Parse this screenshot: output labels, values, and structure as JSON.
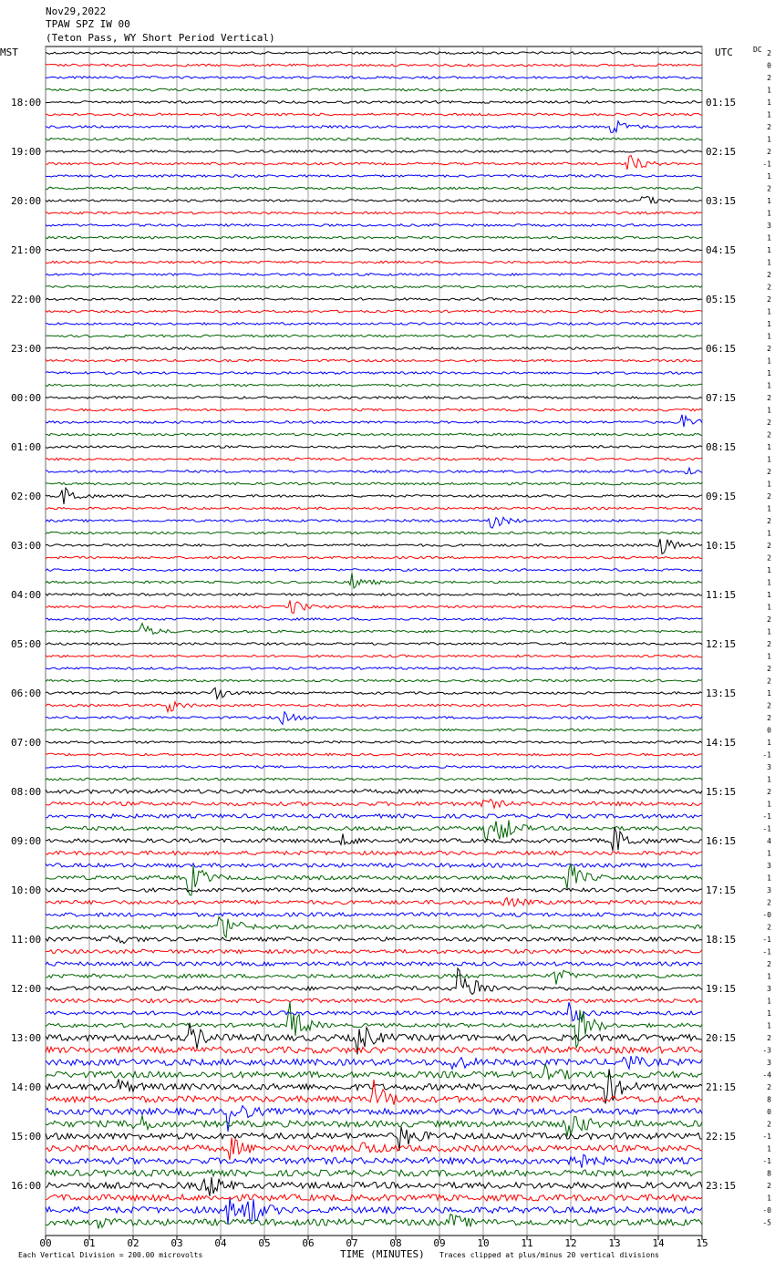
{
  "chart_data": {
    "type": "seismogram",
    "title": "Nov29,2022",
    "subtitle": "TPAW SPZ IW 00",
    "station": "(Teton Pass, WY Short Period Vertical)",
    "left_axis_label": "MST",
    "right_axis_label": "UTC",
    "dc_label": "DC",
    "x_label": "TIME (MINUTES)",
    "scale_note": "Each Vertical Division =  200.00 microvolts",
    "clip_note": "Traces clipped at plus/minus 20 vertical divisions",
    "trace_colors": [
      "#000000",
      "#ff0000",
      "#0000ff",
      "#006400"
    ],
    "xlim": [
      0,
      15
    ],
    "xticks": [
      {
        "value": 0,
        "label": "00"
      },
      {
        "value": 1,
        "label": "01"
      },
      {
        "value": 2,
        "label": "02"
      },
      {
        "value": 3,
        "label": "03"
      },
      {
        "value": 4,
        "label": "04"
      },
      {
        "value": 5,
        "label": "05"
      },
      {
        "value": 6,
        "label": "06"
      },
      {
        "value": 7,
        "label": "07"
      },
      {
        "value": 8,
        "label": "08"
      },
      {
        "value": 9,
        "label": "09"
      },
      10,
      11,
      12,
      13,
      14,
      15
    ],
    "left_labels": [
      "18:00",
      "19:00",
      "20:00",
      "21:00",
      "22:00",
      "23:00",
      "00:00",
      "01:00",
      "02:00",
      "03:00",
      "04:00",
      "05:00",
      "06:00",
      "07:00",
      "08:00",
      "09:00",
      "10:00",
      "11:00",
      "12:00",
      "13:00",
      "14:00",
      "15:00",
      "16:00"
    ],
    "right_labels": [
      "01:15",
      "02:15",
      "03:15",
      "04:15",
      "05:15",
      "06:15",
      "07:15",
      "08:15",
      "09:15",
      "10:15",
      "11:15",
      "12:15",
      "13:15",
      "14:15",
      "15:15",
      "16:15",
      "17:15",
      "18:15",
      "19:15",
      "20:15",
      "21:15",
      "22:15",
      "23:15"
    ],
    "dc_offsets": [
      2,
      0,
      2,
      1,
      1,
      1,
      2,
      1,
      2,
      -1,
      1,
      2,
      1,
      1,
      3,
      1,
      1,
      1,
      2,
      2,
      2,
      1,
      1,
      1,
      2,
      1,
      1,
      1,
      2,
      1,
      2,
      2,
      1,
      1,
      2,
      1,
      2,
      1,
      2,
      1,
      2,
      2,
      1,
      1,
      1,
      1,
      2,
      1,
      2,
      1,
      2,
      2,
      1,
      2,
      2,
      0,
      1,
      -1,
      3,
      1,
      2,
      1,
      -1,
      -1,
      4,
      1,
      3,
      1,
      3,
      2,
      {
        "value": 0,
        "label": "-0"
      },
      2,
      -1,
      -1,
      2,
      1,
      3,
      1,
      1,
      1,
      2,
      -3,
      3,
      -4,
      2,
      8,
      0,
      2,
      -1,
      1,
      -1,
      8,
      2,
      1,
      {
        "value": 0,
        "label": "-0"
      },
      -5
    ]
  }
}
